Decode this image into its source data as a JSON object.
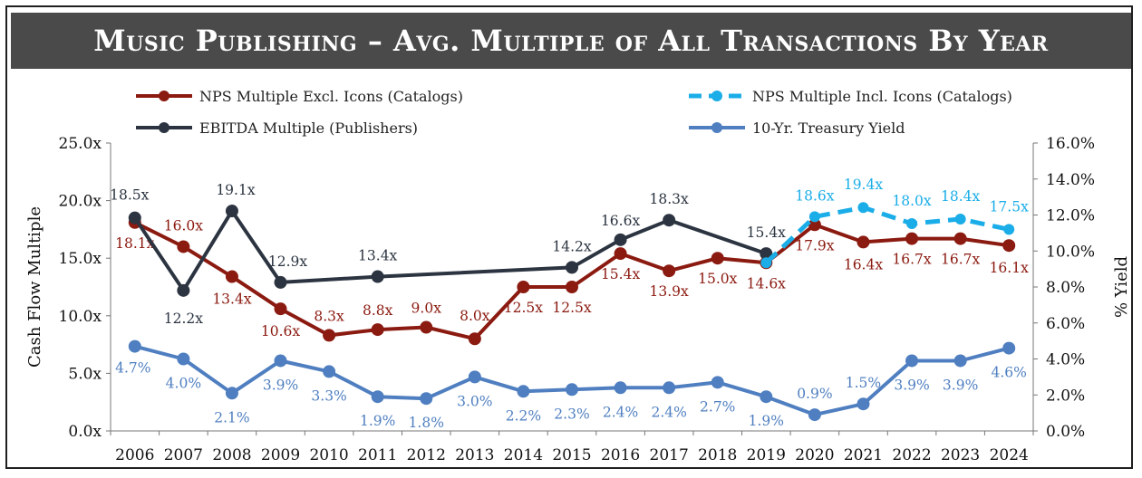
{
  "title": "Music Publishing – Avg. Multiple of All Transactions By Year",
  "chart_data": {
    "type": "line",
    "title": "Music Publishing – Avg. Multiple of All Transactions By Year",
    "ylabel": "Cash Flow Multiple",
    "y2label": "% Yield",
    "ylim": [
      0,
      25
    ],
    "y2lim": [
      0,
      16
    ],
    "yticks": [
      "0.0x",
      "5.0x",
      "10.0x",
      "15.0x",
      "20.0x",
      "25.0x"
    ],
    "y2ticks": [
      "0.0%",
      "2.0%",
      "4.0%",
      "6.0%",
      "8.0%",
      "10.0%",
      "12.0%",
      "14.0%",
      "16.0%"
    ],
    "x": [
      "2006",
      "2007",
      "2008",
      "2009",
      "2010",
      "2011",
      "2012",
      "2013",
      "2014",
      "2015",
      "2016",
      "2017",
      "2018",
      "2019",
      "2020",
      "2021",
      "2022",
      "2023",
      "2024"
    ],
    "legend_position": "top",
    "grid": false,
    "series": [
      {
        "name": "NPS Multiple Excl. Icons (Catalogs)",
        "color": "#8b1a10",
        "axis": "left",
        "style": "solid",
        "values": [
          18.1,
          16.0,
          13.4,
          10.6,
          8.3,
          8.8,
          9.0,
          8.0,
          12.5,
          12.5,
          15.4,
          13.9,
          15.0,
          14.6,
          17.9,
          16.4,
          16.7,
          16.7,
          16.1
        ],
        "labels": [
          "18.1x",
          "16.0x",
          "13.4x",
          "10.6x",
          "8.3x",
          "8.8x",
          "9.0x",
          "8.0x",
          "12.5x",
          "12.5x",
          "15.4x",
          "13.9x",
          "15.0x",
          "14.6x",
          "17.9x",
          "16.4x",
          "16.7x",
          "16.7x",
          "16.1x"
        ]
      },
      {
        "name": "NPS Multiple Incl. Icons (Catalogs)",
        "color": "#1aade8",
        "axis": "left",
        "style": "dashed",
        "x": [
          "2019",
          "2020",
          "2021",
          "2022",
          "2023",
          "2024"
        ],
        "values": [
          14.6,
          18.6,
          19.4,
          18.0,
          18.4,
          17.5
        ],
        "labels": [
          "",
          "18.6x",
          "19.4x",
          "18.0x",
          "18.4x",
          "17.5x"
        ]
      },
      {
        "name": "EBITDA Multiple (Publishers)",
        "color": "#2b3440",
        "axis": "left",
        "style": "solid",
        "x": [
          "2006",
          "2007",
          "2008",
          "2009",
          "2011",
          "2015",
          "2016",
          "2017",
          "2019"
        ],
        "values": [
          18.5,
          12.2,
          19.1,
          12.9,
          13.4,
          14.2,
          16.6,
          18.3,
          15.4
        ],
        "labels": [
          "18.5x",
          "12.2x",
          "19.1x",
          "12.9x",
          "13.4x",
          "14.2x",
          "16.6x",
          "18.3x",
          "15.4x"
        ]
      },
      {
        "name": "10-Yr. Treasury Yield",
        "color": "#4f7fc0",
        "axis": "right",
        "style": "solid",
        "values": [
          4.7,
          4.0,
          2.1,
          3.9,
          3.3,
          1.9,
          1.8,
          3.0,
          2.2,
          2.3,
          2.4,
          2.4,
          2.7,
          1.9,
          0.9,
          1.5,
          3.9,
          3.9,
          4.6
        ],
        "labels": [
          "4.7%",
          "4.0%",
          "2.1%",
          "3.9%",
          "3.3%",
          "1.9%",
          "1.8%",
          "3.0%",
          "2.2%",
          "2.3%",
          "2.4%",
          "2.4%",
          "2.7%",
          "1.9%",
          "0.9%",
          "1.5%",
          "3.9%",
          "3.9%",
          "4.6%"
        ]
      }
    ]
  }
}
